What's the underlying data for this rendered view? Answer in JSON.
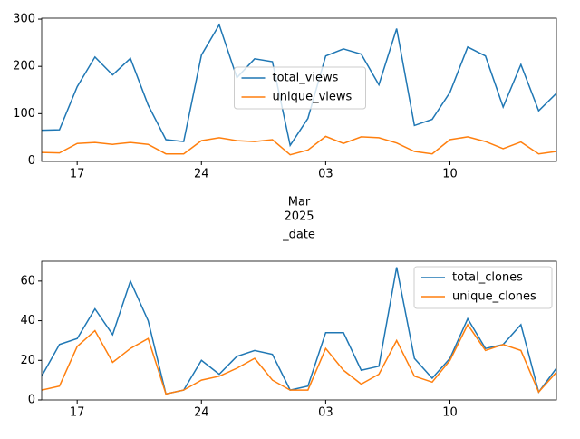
{
  "chart_data": [
    {
      "type": "line",
      "x": [
        "2025-02-15",
        "2025-02-16",
        "2025-02-17",
        "2025-02-18",
        "2025-02-19",
        "2025-02-20",
        "2025-02-21",
        "2025-02-22",
        "2025-02-23",
        "2025-02-24",
        "2025-02-25",
        "2025-02-26",
        "2025-02-27",
        "2025-02-28",
        "2025-03-01",
        "2025-03-02",
        "2025-03-03",
        "2025-03-04",
        "2025-03-05",
        "2025-03-06",
        "2025-03-07",
        "2025-03-08",
        "2025-03-09",
        "2025-03-10",
        "2025-03-11",
        "2025-03-12",
        "2025-03-13",
        "2025-03-14",
        "2025-03-15",
        "2025-03-16"
      ],
      "series": [
        {
          "name": "total_views",
          "color": "#1f77b4",
          "values": [
            65,
            66,
            157,
            220,
            182,
            217,
            118,
            45,
            41,
            224,
            288,
            176,
            216,
            210,
            33,
            90,
            222,
            237,
            226,
            161,
            280,
            75,
            88,
            145,
            241,
            222,
            114,
            204,
            106,
            143
          ]
        },
        {
          "name": "unique_views",
          "color": "#ff7f0e",
          "values": [
            18,
            17,
            37,
            39,
            35,
            39,
            35,
            15,
            15,
            43,
            49,
            43,
            41,
            45,
            13,
            23,
            52,
            37,
            51,
            49,
            38,
            20,
            15,
            45,
            51,
            41,
            26,
            40,
            15,
            20
          ]
        }
      ],
      "xlim": [
        "2025-02-15",
        "2025-03-16"
      ],
      "xticks": [
        {
          "value": "2025-02-17",
          "label": "17"
        },
        {
          "value": "2025-02-24",
          "label": "24"
        },
        {
          "value": "2025-03-03",
          "label": "03"
        },
        {
          "value": "2025-03-10",
          "label": "10"
        }
      ],
      "x_offset_label": [
        "Mar",
        "2025"
      ],
      "xlabel": "_date",
      "ylim": [
        -1,
        302
      ],
      "yticks": [
        0,
        100,
        200,
        300
      ],
      "legend": "center"
    },
    {
      "type": "line",
      "x": [
        "2025-02-15",
        "2025-02-16",
        "2025-02-17",
        "2025-02-18",
        "2025-02-19",
        "2025-02-20",
        "2025-02-21",
        "2025-02-22",
        "2025-02-23",
        "2025-02-24",
        "2025-02-25",
        "2025-02-26",
        "2025-02-27",
        "2025-02-28",
        "2025-03-01",
        "2025-03-02",
        "2025-03-03",
        "2025-03-04",
        "2025-03-05",
        "2025-03-06",
        "2025-03-07",
        "2025-03-08",
        "2025-03-09",
        "2025-03-10",
        "2025-03-11",
        "2025-03-12",
        "2025-03-13",
        "2025-03-14",
        "2025-03-15",
        "2025-03-16"
      ],
      "series": [
        {
          "name": "total_clones",
          "color": "#1f77b4",
          "values": [
            12,
            28,
            31,
            46,
            33,
            60,
            40,
            3,
            5,
            20,
            13,
            22,
            25,
            23,
            5,
            7,
            34,
            34,
            15,
            17,
            67,
            21,
            11,
            21,
            41,
            26,
            28,
            38,
            4,
            16
          ]
        },
        {
          "name": "unique_clones",
          "color": "#ff7f0e",
          "values": [
            5,
            7,
            27,
            35,
            19,
            26,
            31,
            3,
            5,
            10,
            12,
            16,
            21,
            10,
            5,
            5,
            26,
            15,
            8,
            13,
            30,
            12,
            9,
            20,
            38,
            25,
            28,
            25,
            4,
            14
          ]
        }
      ],
      "xlim": [
        "2025-02-15",
        "2025-03-16"
      ],
      "xticks": [
        {
          "value": "2025-02-17",
          "label": "17"
        },
        {
          "value": "2025-02-24",
          "label": "24"
        },
        {
          "value": "2025-03-03",
          "label": "03"
        },
        {
          "value": "2025-03-10",
          "label": "10"
        }
      ],
      "ylim": [
        0,
        70
      ],
      "yticks": [
        0,
        20,
        40,
        60
      ],
      "legend": "upper right"
    }
  ]
}
